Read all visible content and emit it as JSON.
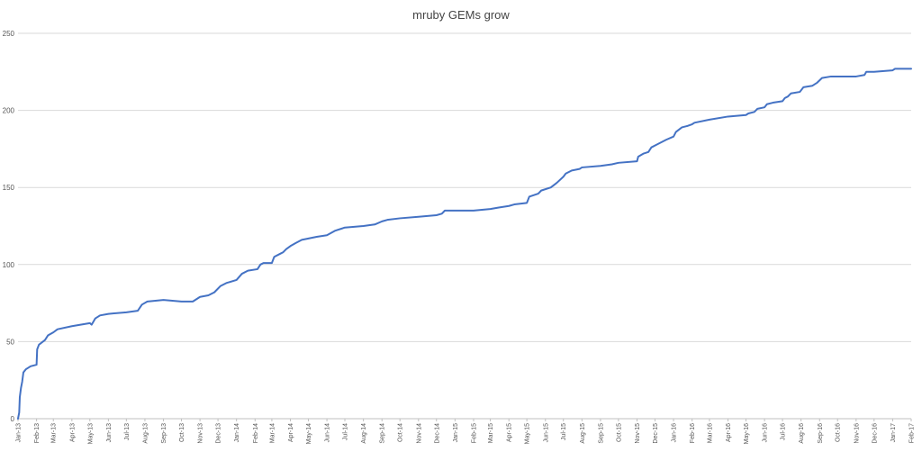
{
  "chart_data": {
    "type": "line",
    "title": "mruby GEMs grow",
    "xlabel": "",
    "ylabel": "",
    "ylim": [
      0,
      250
    ],
    "yticks": [
      0,
      50,
      100,
      150,
      200,
      250
    ],
    "grid": true,
    "legend": "none",
    "colors": {
      "series": "#4472c4",
      "grid": "#d9d9d9",
      "text": "#444444"
    },
    "x_ticks": [
      "Jan-13",
      "Feb-13",
      "Mar-13",
      "Apr-13",
      "May-13",
      "Jun-13",
      "Jul-13",
      "Aug-13",
      "Sep-13",
      "Oct-13",
      "Nov-13",
      "Dec-13",
      "Jan-14",
      "Feb-14",
      "Mar-14",
      "Apr-14",
      "May-14",
      "Jun-14",
      "Jul-14",
      "Aug-14",
      "Sep-14",
      "Oct-14",
      "Nov-14",
      "Dec-14",
      "Jan-15",
      "Feb-15",
      "Mar-15",
      "Apr-15",
      "May-15",
      "Jun-15",
      "Jul-15",
      "Aug-15",
      "Sep-15",
      "Oct-15",
      "Nov-15",
      "Dec-15",
      "Jan-16",
      "Feb-16",
      "Mar-16",
      "Apr-16",
      "May-16",
      "Jun-16",
      "Jul-16",
      "Aug-16",
      "Sep-16",
      "Oct-16",
      "Nov-16",
      "Dec-16",
      "Jan-17",
      "Feb-17"
    ],
    "series": [
      {
        "values": [
          [
            "2013-01-01",
            0
          ],
          [
            "2013-01-03",
            4
          ],
          [
            "2013-01-04",
            14
          ],
          [
            "2013-01-06",
            20
          ],
          [
            "2013-01-08",
            24
          ],
          [
            "2013-01-10",
            30
          ],
          [
            "2013-01-14",
            32
          ],
          [
            "2013-01-22",
            34
          ],
          [
            "2013-02-01",
            35
          ],
          [
            "2013-02-02",
            45
          ],
          [
            "2013-02-05",
            48
          ],
          [
            "2013-02-15",
            51
          ],
          [
            "2013-02-20",
            54
          ],
          [
            "2013-03-01",
            56
          ],
          [
            "2013-03-08",
            58
          ],
          [
            "2013-04-01",
            60
          ],
          [
            "2013-05-01",
            62
          ],
          [
            "2013-05-04",
            61
          ],
          [
            "2013-05-10",
            65
          ],
          [
            "2013-05-18",
            67
          ],
          [
            "2013-06-01",
            68
          ],
          [
            "2013-07-01",
            69
          ],
          [
            "2013-07-20",
            70
          ],
          [
            "2013-07-27",
            74
          ],
          [
            "2013-08-05",
            76
          ],
          [
            "2013-09-01",
            77
          ],
          [
            "2013-10-01",
            76
          ],
          [
            "2013-10-20",
            76
          ],
          [
            "2013-11-01",
            79
          ],
          [
            "2013-11-15",
            80
          ],
          [
            "2013-11-25",
            82
          ],
          [
            "2013-12-05",
            86
          ],
          [
            "2013-12-15",
            88
          ],
          [
            "2014-01-01",
            90
          ],
          [
            "2014-01-10",
            94
          ],
          [
            "2014-01-20",
            96
          ],
          [
            "2014-02-05",
            97
          ],
          [
            "2014-02-10",
            100
          ],
          [
            "2014-02-15",
            101
          ],
          [
            "2014-03-01",
            101
          ],
          [
            "2014-03-05",
            105
          ],
          [
            "2014-03-15",
            107
          ],
          [
            "2014-03-20",
            108
          ],
          [
            "2014-03-25",
            110
          ],
          [
            "2014-04-01",
            112
          ],
          [
            "2014-04-10",
            114
          ],
          [
            "2014-04-20",
            116
          ],
          [
            "2014-05-15",
            118
          ],
          [
            "2014-06-01",
            119
          ],
          [
            "2014-06-15",
            122
          ],
          [
            "2014-07-01",
            124
          ],
          [
            "2014-08-01",
            125
          ],
          [
            "2014-08-20",
            126
          ],
          [
            "2014-09-01",
            128
          ],
          [
            "2014-09-10",
            129
          ],
          [
            "2014-10-01",
            130
          ],
          [
            "2014-11-01",
            131
          ],
          [
            "2014-12-01",
            132
          ],
          [
            "2014-12-10",
            133
          ],
          [
            "2014-12-15",
            135
          ],
          [
            "2015-01-01",
            135
          ],
          [
            "2015-02-01",
            135
          ],
          [
            "2015-03-01",
            136
          ],
          [
            "2015-03-15",
            137
          ],
          [
            "2015-04-01",
            138
          ],
          [
            "2015-04-10",
            139
          ],
          [
            "2015-05-01",
            140
          ],
          [
            "2015-05-05",
            144
          ],
          [
            "2015-05-20",
            146
          ],
          [
            "2015-05-25",
            148
          ],
          [
            "2015-06-10",
            150
          ],
          [
            "2015-06-20",
            153
          ],
          [
            "2015-07-01",
            157
          ],
          [
            "2015-07-05",
            159
          ],
          [
            "2015-07-15",
            161
          ],
          [
            "2015-07-28",
            162
          ],
          [
            "2015-08-01",
            163
          ],
          [
            "2015-09-01",
            164
          ],
          [
            "2015-09-20",
            165
          ],
          [
            "2015-10-01",
            166
          ],
          [
            "2015-11-01",
            167
          ],
          [
            "2015-11-03",
            170
          ],
          [
            "2015-11-12",
            172
          ],
          [
            "2015-11-20",
            173
          ],
          [
            "2015-11-25",
            176
          ],
          [
            "2015-12-05",
            178
          ],
          [
            "2015-12-20",
            181
          ],
          [
            "2016-01-01",
            183
          ],
          [
            "2016-01-05",
            186
          ],
          [
            "2016-01-15",
            189
          ],
          [
            "2016-01-25",
            190
          ],
          [
            "2016-02-01",
            191
          ],
          [
            "2016-02-05",
            192
          ],
          [
            "2016-03-01",
            194
          ],
          [
            "2016-04-01",
            196
          ],
          [
            "2016-05-01",
            197
          ],
          [
            "2016-05-05",
            198
          ],
          [
            "2016-05-15",
            199
          ],
          [
            "2016-05-20",
            201
          ],
          [
            "2016-06-01",
            202
          ],
          [
            "2016-06-05",
            204
          ],
          [
            "2016-06-15",
            205
          ],
          [
            "2016-07-01",
            206
          ],
          [
            "2016-07-05",
            208
          ],
          [
            "2016-07-10",
            209
          ],
          [
            "2016-07-15",
            211
          ],
          [
            "2016-07-30",
            212
          ],
          [
            "2016-08-05",
            215
          ],
          [
            "2016-08-20",
            216
          ],
          [
            "2016-08-28",
            218
          ],
          [
            "2016-09-05",
            221
          ],
          [
            "2016-09-20",
            222
          ],
          [
            "2016-10-01",
            222
          ],
          [
            "2016-11-01",
            222
          ],
          [
            "2016-11-15",
            223
          ],
          [
            "2016-11-18",
            225
          ],
          [
            "2016-12-01",
            225
          ],
          [
            "2017-01-01",
            226
          ],
          [
            "2017-01-05",
            227
          ],
          [
            "2017-02-01",
            227
          ]
        ]
      }
    ]
  }
}
